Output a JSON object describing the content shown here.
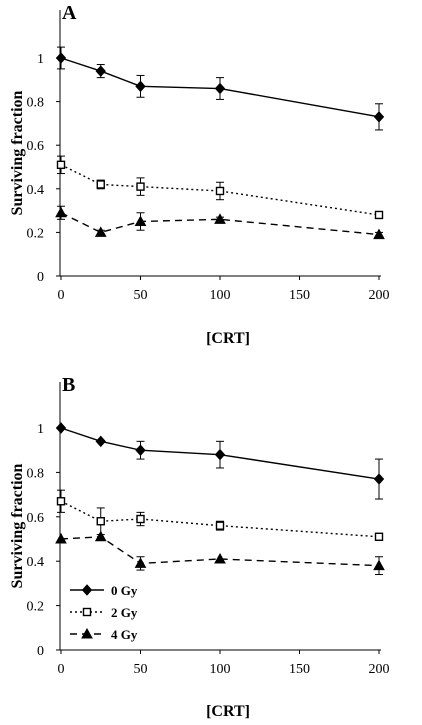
{
  "chart_data": [
    {
      "type": "line",
      "panel_label": "A",
      "xlabel": "[CRT]",
      "ylabel": "Surviving fraction",
      "xlim": [
        0,
        200
      ],
      "ylim": [
        0,
        1
      ],
      "xticks": [
        0,
        50,
        100,
        150,
        200
      ],
      "yticks": [
        0,
        0.2,
        0.4,
        0.6,
        0.8,
        1
      ],
      "ytick_labels": [
        "0",
        "0.2",
        "0.4",
        "0.6",
        "0.8",
        "1"
      ],
      "grid": false,
      "legend": false,
      "x": [
        0,
        25,
        50,
        100,
        200
      ],
      "series": [
        {
          "marker": "diamond-filled",
          "dash": "solid",
          "values": [
            1.0,
            0.94,
            0.87,
            0.86,
            0.73
          ],
          "errors": [
            0.05,
            0.03,
            0.05,
            0.05,
            0.06
          ]
        },
        {
          "marker": "square-open",
          "dash": "dotted",
          "values": [
            0.51,
            0.42,
            0.41,
            0.39,
            0.28
          ],
          "errors": [
            0.04,
            0.02,
            0.04,
            0.04,
            0.01
          ]
        },
        {
          "marker": "triangle-filled",
          "dash": "dashed",
          "values": [
            0.29,
            0.2,
            0.25,
            0.26,
            0.19
          ],
          "errors": [
            0.03,
            0.01,
            0.04,
            0.01,
            0.01
          ]
        }
      ]
    },
    {
      "type": "line",
      "panel_label": "B",
      "xlabel": "[CRT]",
      "ylabel": "Surviving fraction",
      "xlim": [
        0,
        200
      ],
      "ylim": [
        0,
        1
      ],
      "xticks": [
        0,
        50,
        100,
        150,
        200
      ],
      "yticks": [
        0,
        0.2,
        0.4,
        0.6,
        0.8,
        1
      ],
      "ytick_labels": [
        "0",
        "0.2",
        "0.4",
        "0.6",
        "0.8",
        "1"
      ],
      "grid": false,
      "legend": true,
      "legend_position": "bottom-left",
      "x": [
        0,
        25,
        50,
        100,
        200
      ],
      "series": [
        {
          "name": "0 Gy",
          "marker": "diamond-filled",
          "dash": "solid",
          "values": [
            1.0,
            0.94,
            0.9,
            0.88,
            0.77
          ],
          "errors": [
            0.0,
            0.0,
            0.04,
            0.06,
            0.09
          ]
        },
        {
          "name": "2 Gy",
          "marker": "square-open",
          "dash": "dotted",
          "values": [
            0.67,
            0.58,
            0.59,
            0.56,
            0.51
          ],
          "errors": [
            0.05,
            0.06,
            0.03,
            0.02,
            0.0
          ]
        },
        {
          "name": "4 Gy",
          "marker": "triangle-filled",
          "dash": "dashed",
          "values": [
            0.5,
            0.51,
            0.39,
            0.41,
            0.38
          ],
          "errors": [
            0.0,
            0.0,
            0.03,
            0.0,
            0.04
          ]
        }
      ]
    }
  ]
}
